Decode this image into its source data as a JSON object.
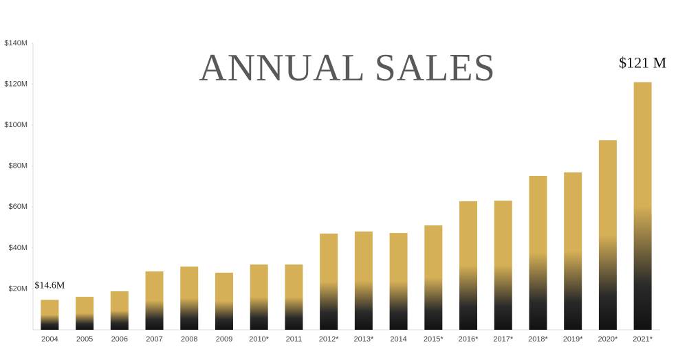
{
  "chart_data": {
    "type": "bar",
    "title": "ANNUAL SALES",
    "categories": [
      "2004",
      "2005",
      "2006",
      "2007",
      "2008",
      "2009",
      "2010*",
      "2011",
      "2012*",
      "2013*",
      "2014",
      "2015*",
      "2016*",
      "2017*",
      "2018*",
      "2019*",
      "2020*",
      "2021*"
    ],
    "values": [
      14.6,
      16.1,
      18.8,
      28.5,
      30.9,
      27.9,
      31.9,
      31.9,
      47.0,
      48.0,
      47.3,
      51.0,
      62.8,
      63.1,
      75.2,
      76.9,
      92.6,
      121
    ],
    "value_labels": [
      "$14.6M",
      null,
      null,
      null,
      null,
      null,
      null,
      null,
      null,
      null,
      null,
      null,
      null,
      null,
      null,
      null,
      null,
      "$121 M"
    ],
    "color": "#d6b056",
    "ylim": [
      0,
      140
    ],
    "yticks": [
      {
        "value": 20,
        "label": "$20M"
      },
      {
        "value": 40,
        "label": "$40M"
      },
      {
        "value": 60,
        "label": "$60M"
      },
      {
        "value": 80,
        "label": "$80M"
      },
      {
        "value": 100,
        "label": "$100M"
      },
      {
        "value": 120,
        "label": "$120M"
      },
      {
        "value": 140,
        "label": "$140M"
      }
    ],
    "grid": false
  }
}
